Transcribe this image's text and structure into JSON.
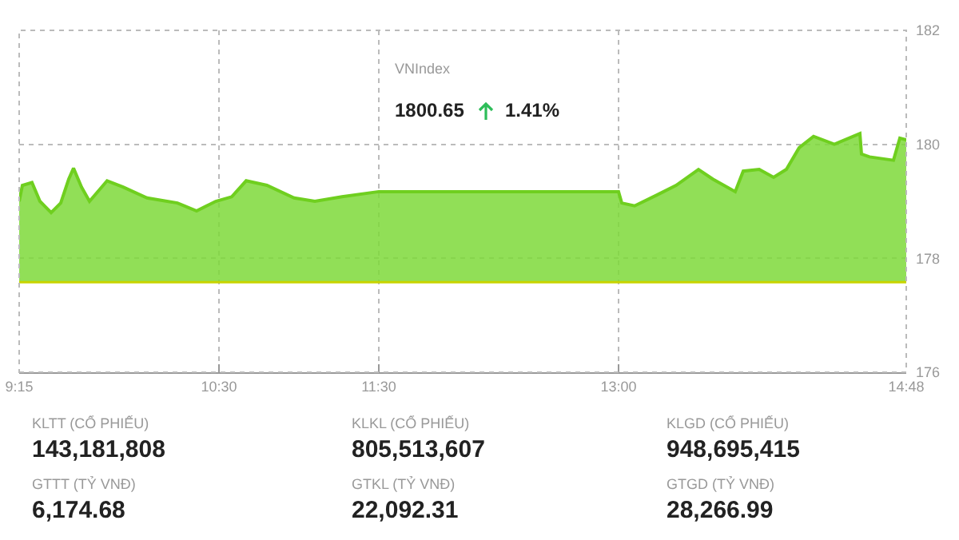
{
  "chart_data": {
    "type": "area",
    "annotations": [
      "VNIndex",
      "1800.65",
      "1.41%",
      "KLTT (CỔ PHIẾU)",
      "143,181,808",
      "GTTT (TỶ VNĐ)",
      "6,174.68",
      "KLKL (CỔ PHIẾU)",
      "805,513,607",
      "GTKL (TỶ VNĐ)",
      "22,092.31",
      "KLGD (CỔ PHIẾU)",
      "948,695,415",
      "GTGD (TỶ VNĐ)",
      "28,266.99"
    ],
    "series": [
      {
        "color": "#6fcf1f",
        "x": [
          9.25,
          9.27,
          9.33,
          9.38,
          9.45,
          9.51,
          9.56,
          9.59,
          9.64,
          9.69,
          9.8,
          9.9,
          10.05,
          10.24,
          10.36,
          10.48,
          10.58,
          10.67,
          10.8,
          10.97,
          11.1,
          11.27,
          11.5,
          13.0,
          13.02,
          13.1,
          13.24,
          13.36,
          13.5,
          13.59,
          13.73,
          13.78,
          13.88,
          13.97,
          14.05,
          14.13,
          14.22,
          14.35,
          14.51,
          14.52,
          14.57,
          14.72,
          14.76,
          14.8
        ],
        "values": [
          179.0,
          179.28,
          179.33,
          179.0,
          178.8,
          178.97,
          179.39,
          179.58,
          179.25,
          179.0,
          179.36,
          179.25,
          179.06,
          178.97,
          178.83,
          179.0,
          179.08,
          179.36,
          179.28,
          179.06,
          179.0,
          179.08,
          179.17,
          179.17,
          178.97,
          178.92,
          179.11,
          179.28,
          179.56,
          179.39,
          179.17,
          179.53,
          179.56,
          179.42,
          179.56,
          179.94,
          180.14,
          180.0,
          180.19,
          179.83,
          179.78,
          179.72,
          180.11,
          180.08
        ]
      }
    ],
    "ref_lines": [
      {
        "axis": "y",
        "value": 177.58,
        "color": "#c8d400"
      }
    ],
    "xlim": [
      9.25,
      14.8
    ],
    "xticks": [
      {
        "value": 9.25,
        "label": "9:15"
      },
      {
        "value": 10.5,
        "label": "10:30"
      },
      {
        "value": 11.5,
        "label": "11:30"
      },
      {
        "value": 13,
        "label": "13:00"
      },
      {
        "value": 14.8,
        "label": "14:48"
      }
    ],
    "ylim": [
      176,
      182
    ],
    "yticks": [
      176,
      178,
      180,
      182
    ],
    "grid": true
  }
}
